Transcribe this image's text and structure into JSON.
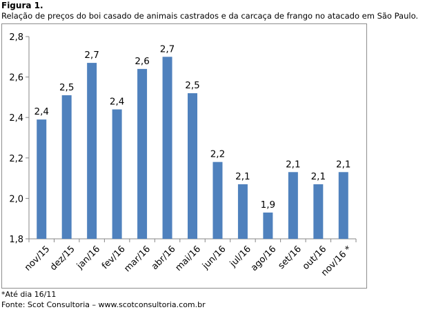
{
  "figure": {
    "label": "Figura 1.",
    "caption": "Relação de preços do boi casado de animais castrados e da carcaça de frango no atacado em São Paulo.",
    "note": "*Até dia 16/11",
    "source": "Fonte: Scot Consultoria – www.scotconsultoria.com.br"
  },
  "colors": {
    "bar": "#4f81bd",
    "axis": "#868686"
  },
  "chart_data": {
    "type": "bar",
    "title": "",
    "xlabel": "",
    "ylabel": "",
    "categories": [
      "nov/15",
      "dez/15",
      "jan/16",
      "fev/16",
      "mar/16",
      "abr/16",
      "mai/16",
      "jun/16",
      "jul/16",
      "ago/16",
      "set/16",
      "out/16",
      "nov/16 *"
    ],
    "values": [
      2.39,
      2.51,
      2.67,
      2.44,
      2.64,
      2.7,
      2.52,
      2.18,
      2.07,
      1.93,
      2.13,
      2.07,
      2.13
    ],
    "data_labels": [
      "2,4",
      "2,5",
      "2,7",
      "2,4",
      "2,6",
      "2,7",
      "2,5",
      "2,2",
      "2,1",
      "1,9",
      "2,1",
      "2,1",
      "2,1"
    ],
    "ylim": [
      1.8,
      2.8
    ],
    "yticks": [
      1.8,
      2.0,
      2.2,
      2.4,
      2.6,
      2.8
    ],
    "ytick_labels": [
      "1,8",
      "2,0",
      "2,2",
      "2,4",
      "2,6",
      "2,8"
    ],
    "grid": false,
    "legend": "none"
  }
}
